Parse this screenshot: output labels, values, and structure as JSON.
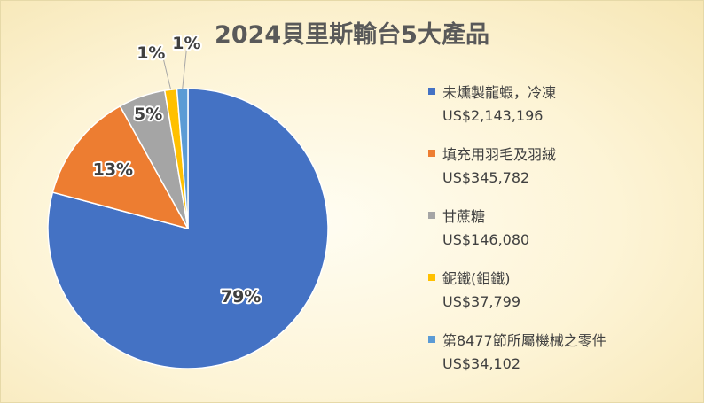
{
  "chart_data": {
    "type": "pie",
    "title": "2024貝里斯輸台5大產品",
    "slices": [
      {
        "name": "未燻製龍蝦，冷凍",
        "value": 2143196,
        "value_label": "US$2,143,196",
        "percent_label": "79%",
        "color": "#4472C4"
      },
      {
        "name": "填充用羽毛及羽絨",
        "value": 345782,
        "value_label": "US$345,782",
        "percent_label": "13%",
        "color": "#ED7D31"
      },
      {
        "name": "甘蔗糖",
        "value": 146080,
        "value_label": "US$146,080",
        "percent_label": "5%",
        "color": "#A5A5A5"
      },
      {
        "name": "鈮鐵(鉬鐵)",
        "value": 37799,
        "value_label": "US$37,799",
        "percent_label": "1%",
        "color": "#FFC000"
      },
      {
        "name": "第8477節所屬機械之零件",
        "value": 34102,
        "value_label": "US$34,102",
        "percent_label": "1%",
        "color": "#5B9BD5"
      }
    ],
    "legend_position": "right"
  }
}
